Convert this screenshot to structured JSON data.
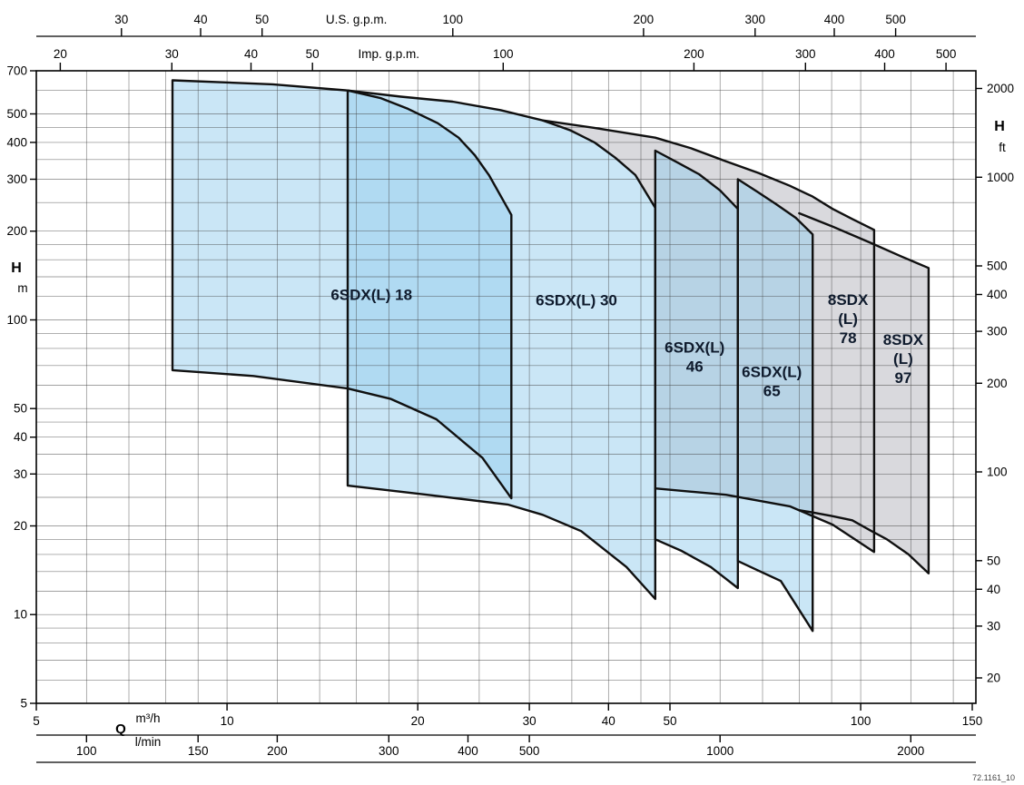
{
  "watermark": "72.1161_10",
  "chart_data": {
    "type": "area",
    "scale": "log-log",
    "description": "Submersible pump selection chart: head H versus flow Q operating envelopes",
    "x_range_m3h": [
      5,
      152
    ],
    "y_range_m": [
      5,
      700
    ],
    "axes": {
      "top_outer": {
        "label": "U.S. g.p.m.",
        "to_m3h": 0.22712,
        "title_q": 16,
        "ticks": [
          30,
          40,
          50,
          100,
          200,
          300,
          400,
          500
        ]
      },
      "top_inner": {
        "label": "Imp. g.p.m.",
        "to_m3h": 0.27277,
        "title_q": 18,
        "ticks": [
          20,
          30,
          40,
          50,
          100,
          200,
          300,
          400,
          500
        ]
      },
      "bottom_inner": {
        "label": "m³/h",
        "q_label": "Q",
        "ticks": [
          5,
          10,
          20,
          30,
          40,
          50,
          100,
          150
        ]
      },
      "bottom_outer": {
        "label": "l/min",
        "to_m3h": 0.06,
        "ticks": [
          100,
          150,
          200,
          300,
          400,
          500,
          1000,
          2000
        ]
      },
      "left": {
        "label": "H",
        "unit": "m",
        "ticks": [
          5,
          10,
          20,
          30,
          40,
          50,
          100,
          200,
          300,
          400,
          500,
          700
        ]
      },
      "right": {
        "label": "H",
        "unit": "ft",
        "to_m": 0.3048,
        "ticks": [
          20,
          30,
          40,
          50,
          100,
          200,
          300,
          400,
          500,
          1000,
          2000
        ]
      }
    },
    "grid_m": [
      6,
      7,
      8,
      9,
      10,
      12,
      14,
      16,
      18,
      20,
      25,
      30,
      35,
      40,
      45,
      50,
      60,
      70,
      80,
      90,
      100,
      120,
      140,
      160,
      180,
      200,
      250,
      300,
      350,
      400,
      450,
      500,
      600,
      700
    ],
    "grid_m3h": [
      6,
      7,
      8,
      9,
      10,
      12,
      14,
      16,
      18,
      20,
      25,
      30,
      35,
      40,
      45,
      50,
      60,
      70,
      80,
      90,
      100,
      120,
      140
    ],
    "colors": {
      "envelope_6sdx": "rgba(150,205,238,0.5)",
      "envelope_8sdx": "#d9d9dd",
      "stroke": "#101010",
      "label": "#0f1b2d"
    },
    "series": [
      {
        "name": "8SDX (L) 78",
        "family": "8SDX",
        "open_stroke": true,
        "label_lines": [
          "8SDX",
          "(L)",
          "78"
        ],
        "label_q": 95.5,
        "label_h": 101,
        "points": [
          [
            31.5,
            475
          ],
          [
            38,
            448
          ],
          [
            47.4,
            415
          ],
          [
            54,
            382
          ],
          [
            61.3,
            345
          ],
          [
            69,
            315
          ],
          [
            77.3,
            285
          ],
          [
            84,
            262
          ],
          [
            90.3,
            238
          ],
          [
            97,
            220
          ],
          [
            105,
            202
          ],
          [
            105,
            16.3
          ],
          [
            90.3,
            20.2
          ],
          [
            77.3,
            23.3
          ],
          [
            61.3,
            25.5
          ],
          [
            47.4,
            26.8
          ]
        ],
        "close": [
          [
            47.4,
            240
          ],
          [
            44.1,
            310
          ],
          [
            38,
            400
          ]
        ]
      },
      {
        "name": "8SDX (L) 97",
        "family": "8SDX",
        "open_stroke": true,
        "label_lines": [
          "8SDX",
          "(L)",
          "97"
        ],
        "label_q": 116.7,
        "label_h": 74,
        "points": [
          [
            80,
            230
          ],
          [
            90,
            208
          ],
          [
            104,
            182
          ],
          [
            116,
            164
          ],
          [
            128,
            150
          ],
          [
            128,
            13.8
          ],
          [
            119,
            16
          ],
          [
            110,
            18
          ],
          [
            104,
            19.2
          ],
          [
            97,
            20.9
          ],
          [
            90,
            21.6
          ],
          [
            84,
            22.2
          ],
          [
            80,
            22.6
          ]
        ],
        "close": []
      },
      {
        "name": "6SDX(L) 30",
        "family": "6SDX",
        "open_stroke": false,
        "label_lines": [
          "6SDX(L) 30"
        ],
        "label_q": 35.6,
        "label_h": 117,
        "points": [
          [
            15.5,
            600
          ],
          [
            18.8,
            572
          ],
          [
            22.7,
            550
          ],
          [
            27,
            515
          ],
          [
            31.5,
            475
          ],
          [
            34.8,
            440
          ],
          [
            38,
            400
          ],
          [
            41,
            355
          ],
          [
            44.1,
            310
          ],
          [
            47.4,
            240
          ],
          [
            47.4,
            11.3
          ],
          [
            42.7,
            14.5
          ],
          [
            36.2,
            19.2
          ],
          [
            31.5,
            21.8
          ],
          [
            27.8,
            23.6
          ],
          [
            20.7,
            25.5
          ],
          [
            15.5,
            27.4
          ]
        ],
        "close": []
      },
      {
        "name": "6SDX(L) 18",
        "family": "6SDX",
        "open_stroke": false,
        "label_lines": [
          "6SDX(L) 18"
        ],
        "label_q": 16.9,
        "label_h": 122,
        "points": [
          [
            8.2,
            650
          ],
          [
            11.8,
            630
          ],
          [
            15.5,
            600
          ],
          [
            17.5,
            565
          ],
          [
            19.3,
            520
          ],
          [
            21.5,
            465
          ],
          [
            23.2,
            415
          ],
          [
            24.6,
            362
          ],
          [
            25.9,
            310
          ],
          [
            28.1,
            227
          ],
          [
            28.1,
            24.8
          ],
          [
            25.3,
            34
          ],
          [
            21.4,
            46
          ],
          [
            18.1,
            54
          ],
          [
            15.5,
            58.5
          ],
          [
            11,
            64.5
          ],
          [
            8.2,
            67.5
          ]
        ],
        "close": []
      },
      {
        "name": "6SDX(L) 46",
        "family": "6SDX",
        "open_stroke": false,
        "label_lines": [
          "6SDX(L)",
          "46"
        ],
        "label_q": 54.7,
        "label_h": 75,
        "points": [
          [
            47.4,
            375
          ],
          [
            51,
            345
          ],
          [
            55.6,
            312
          ],
          [
            60,
            275
          ],
          [
            64,
            238
          ],
          [
            64,
            12.3
          ],
          [
            58,
            14.5
          ],
          [
            52,
            16.5
          ],
          [
            47.4,
            18
          ]
        ],
        "close": []
      },
      {
        "name": "6SDX(L) 65",
        "family": "6SDX",
        "open_stroke": false,
        "label_lines": [
          "6SDX(L)",
          "65"
        ],
        "label_q": 72.4,
        "label_h": 62,
        "points": [
          [
            64,
            300
          ],
          [
            68.5,
            273
          ],
          [
            73.5,
            247
          ],
          [
            79,
            222
          ],
          [
            84,
            195
          ],
          [
            84,
            8.8
          ],
          [
            74.8,
            13
          ],
          [
            68,
            14.3
          ],
          [
            64,
            15.2
          ]
        ],
        "close": []
      }
    ]
  }
}
